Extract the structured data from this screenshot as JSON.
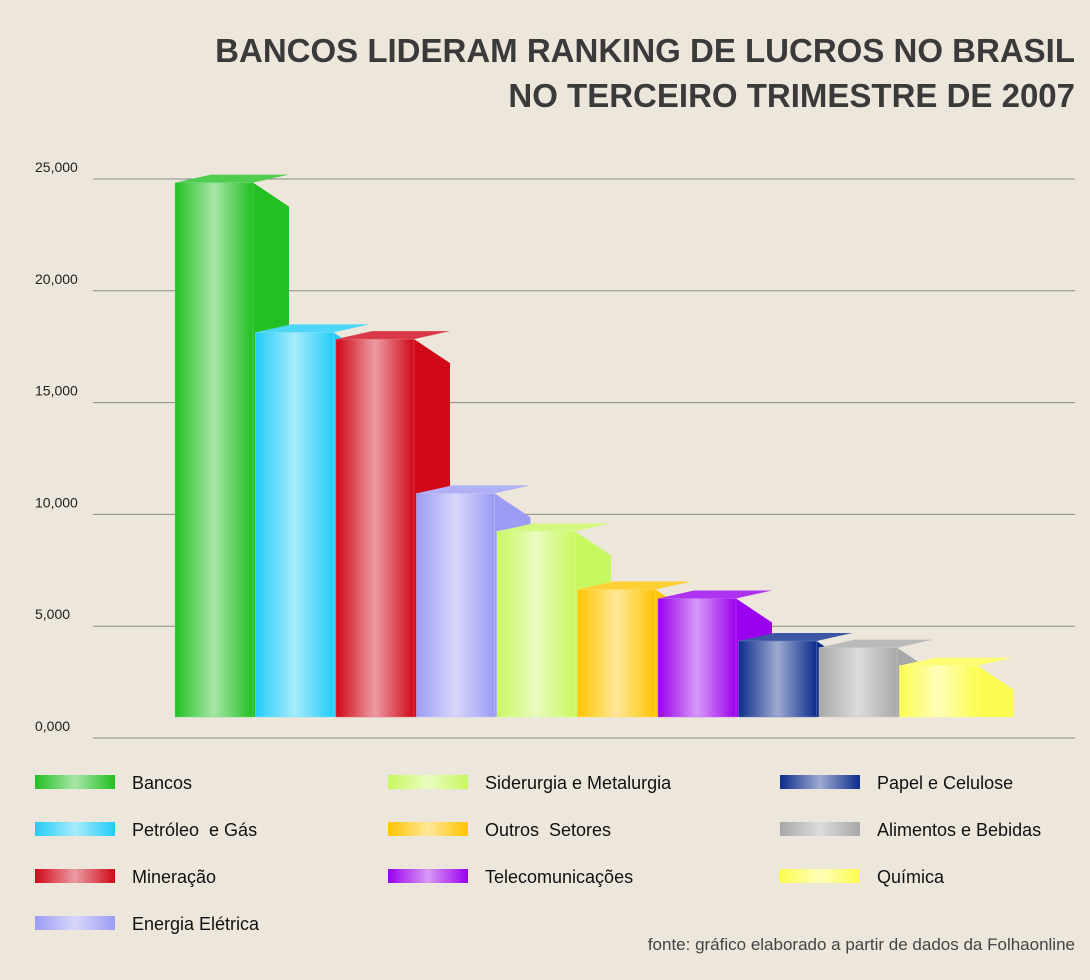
{
  "chart_data": {
    "type": "bar3d",
    "title": [
      "BANCOS LIDERAM RANKING DE LUCROS NO BRASIL",
      "NO TERCEIRO TRIMESTRE DE 2007"
    ],
    "categories": [
      "Bancos",
      "Petróleo  e Gás",
      "Mineração",
      "Energia Elétrica",
      "Siderurgia e Metalurgia",
      "Outros  Setores",
      "Telecomunicações",
      "Papel e Celulose",
      "Alimentos e Bebidas",
      "Química"
    ],
    "values": [
      23900,
      17200,
      16900,
      10000,
      8300,
      5700,
      5300,
      3400,
      3100,
      2300
    ],
    "colors": [
      "#22c022",
      "#22ccf8",
      "#d00818",
      "#9c9cf4",
      "#c8f860",
      "#ffc400",
      "#9a00ee",
      "#0c2c8c",
      "#a8a8a8",
      "#fcfc50"
    ],
    "ylim": [
      0,
      25000
    ],
    "yticks": [
      {
        "value": 0,
        "label": "0,000"
      },
      {
        "value": 5000,
        "label": "5,000"
      },
      {
        "value": 10000,
        "label": "10,000"
      },
      {
        "value": 15000,
        "label": "15,000"
      },
      {
        "value": 20000,
        "label": "20,000"
      },
      {
        "value": 25000,
        "label": "25,000"
      }
    ],
    "grid": true,
    "source": "fonte: gráfico elaborado a partir de dados da Folhaonline"
  }
}
